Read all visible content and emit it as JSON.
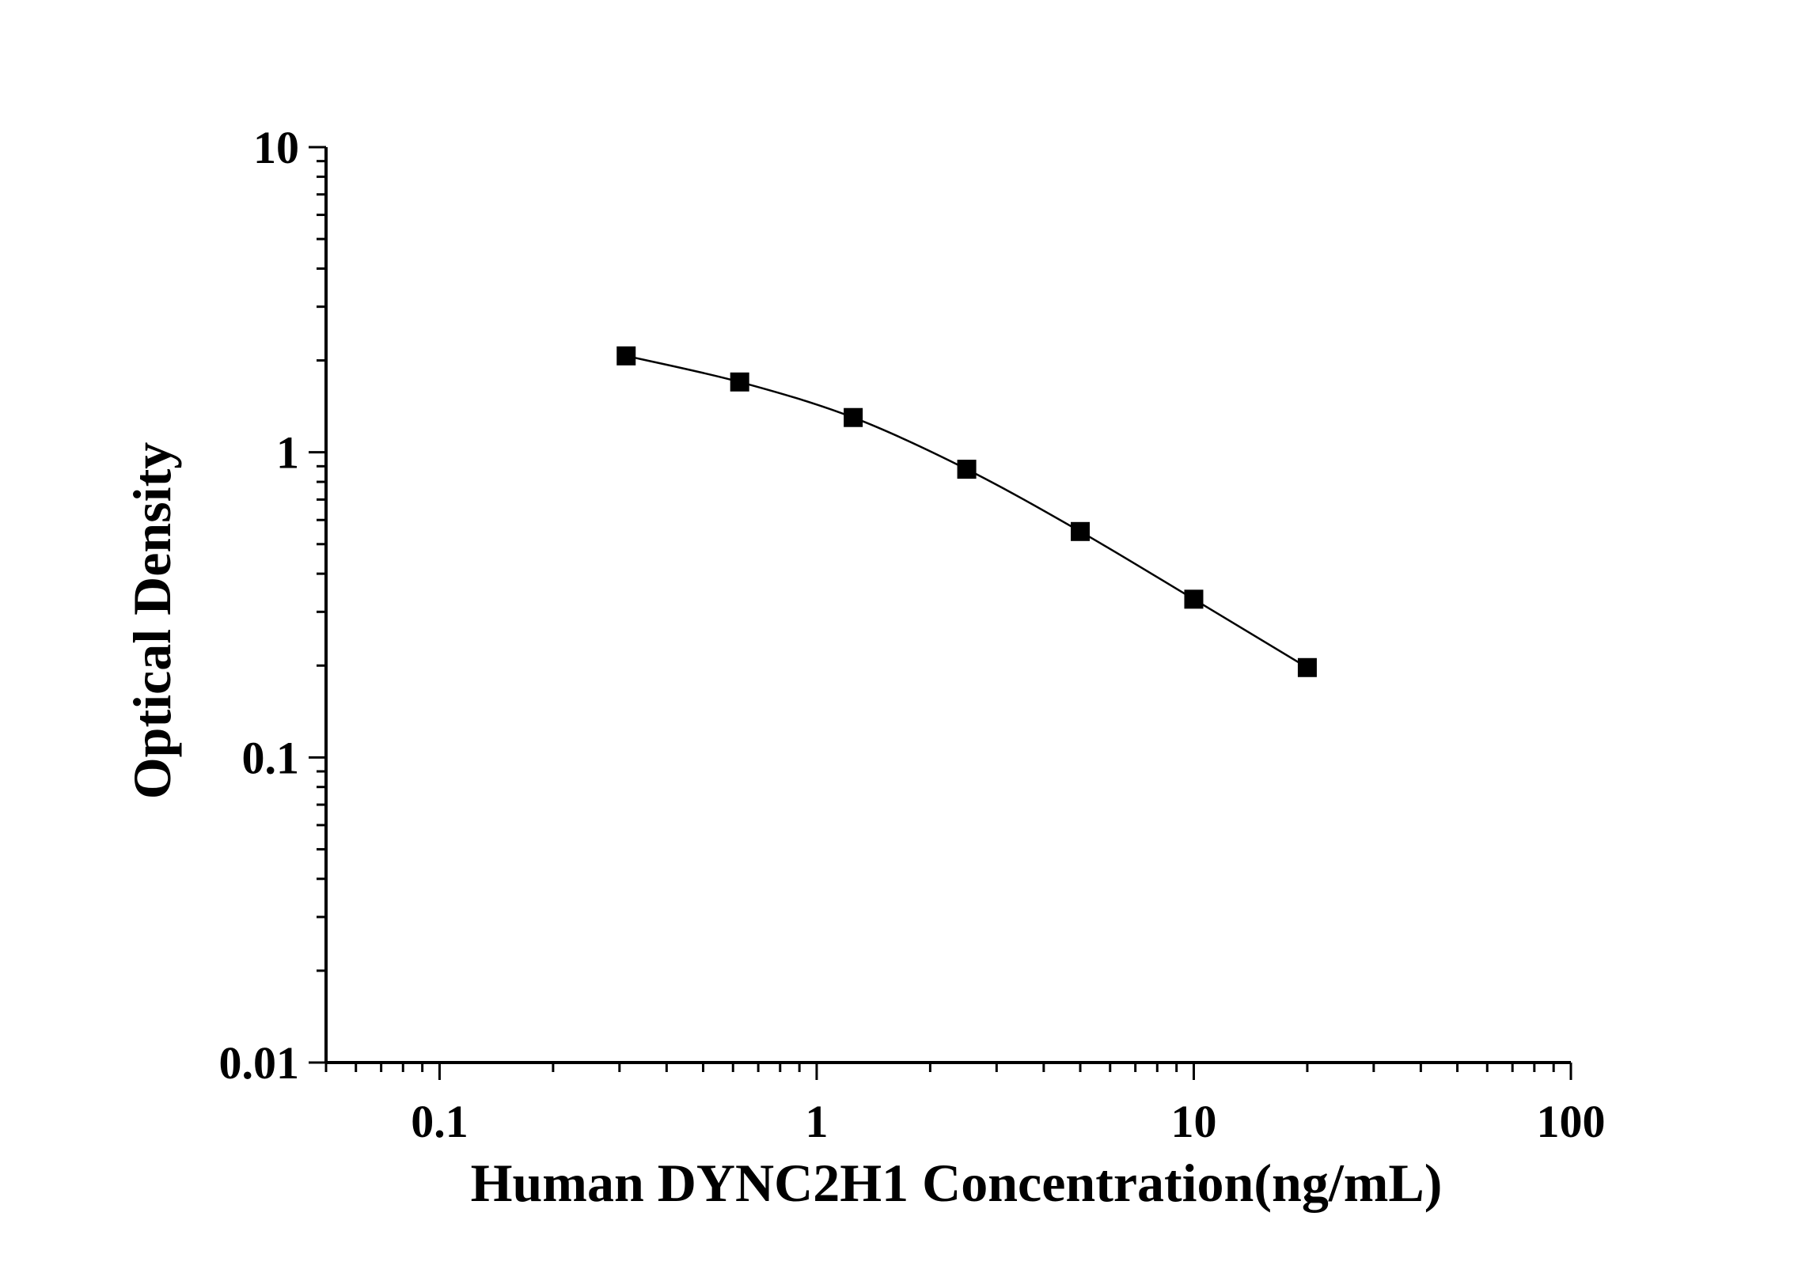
{
  "chart_data": {
    "type": "scatter",
    "title": "",
    "xlabel": "Human DYNC2H1 Concentration(ng/mL)",
    "ylabel": "Optical Density",
    "xscale": "log",
    "yscale": "log",
    "xlim": [
      0.05,
      100
    ],
    "ylim": [
      0.01,
      10
    ],
    "x_ticks": [
      0.1,
      1,
      10,
      100
    ],
    "x_tick_labels": [
      "0.1",
      "1",
      "10",
      "100"
    ],
    "y_ticks": [
      0.01,
      0.1,
      1,
      10
    ],
    "y_tick_labels": [
      "0.01",
      "0.1",
      "1",
      "10"
    ],
    "grid": false,
    "legend": "none",
    "marker": "square",
    "line": "smooth",
    "color": "#000000",
    "series": [
      {
        "x": [
          0.3125,
          0.625,
          1.25,
          2.5,
          5,
          10,
          20
        ],
        "y": [
          2.07,
          1.7,
          1.3,
          0.88,
          0.55,
          0.33,
          0.197
        ]
      }
    ]
  }
}
